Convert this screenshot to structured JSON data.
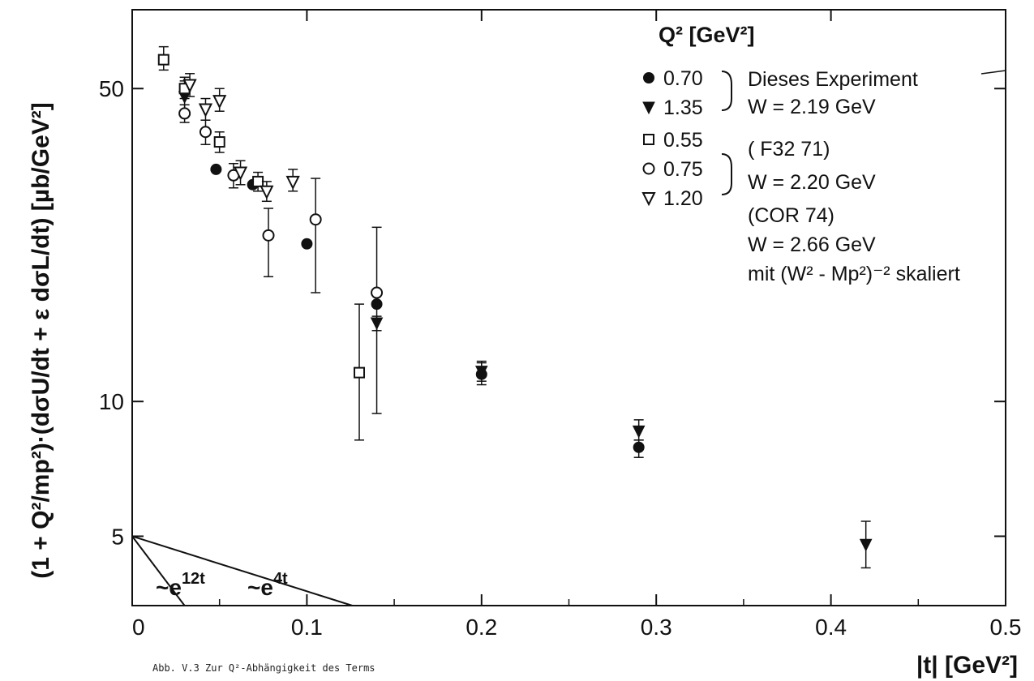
{
  "chart_data": {
    "type": "scatter",
    "xlabel": "|t| [GeV²]",
    "ylabel": "(1 + Q²/mp²)·(dσU/dt + ε dσL/dt)  [µb/GeV²]",
    "xlim": [
      0,
      0.5
    ],
    "ylim": [
      3.5,
      75
    ],
    "y_scale": "log",
    "x_ticks": [
      "0",
      "0.1",
      "0.2",
      "0.3",
      "0.4",
      "0.5"
    ],
    "y_ticks": [
      "5",
      "10",
      "50"
    ],
    "legend_title": "Q² [GeV²]",
    "legend_position": "top-right",
    "legend": [
      {
        "symbol": "filled-circle",
        "label": "0.70"
      },
      {
        "symbol": "filled-triangle-down",
        "label": "1.35"
      },
      {
        "symbol": "open-square",
        "label": "0.55"
      },
      {
        "symbol": "open-circle",
        "label": "0.75"
      },
      {
        "symbol": "open-triangle-down",
        "label": "1.20"
      }
    ],
    "legend_notes": [
      "Dieses Experiment",
      "W = 2.19 GeV",
      "( F32  71)",
      "W = 2.20 GeV",
      "(COR 74)",
      "W = 2.66 GeV",
      "mit (W² - Mp²)⁻² skaliert"
    ],
    "series": [
      {
        "name": "0.70",
        "symbol": "filled-circle",
        "points": [
          {
            "x": 0.048,
            "y": 33,
            "lo": 33,
            "hi": 33
          },
          {
            "x": 0.069,
            "y": 30.5,
            "lo": 30.5,
            "hi": 30.5
          },
          {
            "x": 0.1,
            "y": 22.5,
            "lo": 22.5,
            "hi": 22.5
          },
          {
            "x": 0.14,
            "y": 16.5,
            "lo": 16.5,
            "hi": 16.5
          },
          {
            "x": 0.2,
            "y": 11.5,
            "lo": 10.9,
            "hi": 12.2
          },
          {
            "x": 0.29,
            "y": 7.9,
            "lo": 7.5,
            "hi": 8.2
          }
        ]
      },
      {
        "name": "1.35",
        "symbol": "filled-triangle-down",
        "points": [
          {
            "x": 0.03,
            "y": 48,
            "lo": 44,
            "hi": 52
          },
          {
            "x": 0.14,
            "y": 15.0,
            "lo": 14.4,
            "hi": 15.5
          },
          {
            "x": 0.2,
            "y": 11.7,
            "lo": 11.1,
            "hi": 12.3
          },
          {
            "x": 0.29,
            "y": 8.6,
            "lo": 8.2,
            "hi": 9.1
          },
          {
            "x": 0.42,
            "y": 4.8,
            "lo": 4.25,
            "hi": 5.4
          }
        ]
      },
      {
        "name": "0.55",
        "symbol": "open-square",
        "points": [
          {
            "x": 0.018,
            "y": 58,
            "lo": 55,
            "hi": 62
          },
          {
            "x": 0.03,
            "y": 50,
            "lo": 47.5,
            "hi": 53
          },
          {
            "x": 0.05,
            "y": 38,
            "lo": 36,
            "hi": 40
          },
          {
            "x": 0.072,
            "y": 31,
            "lo": 29.5,
            "hi": 32.5
          },
          {
            "x": 0.13,
            "y": 11.6,
            "lo": 8.2,
            "hi": 16.5
          }
        ]
      },
      {
        "name": "0.75",
        "symbol": "open-circle",
        "points": [
          {
            "x": 0.03,
            "y": 44,
            "lo": 42,
            "hi": 46
          },
          {
            "x": 0.042,
            "y": 40,
            "lo": 37.5,
            "hi": 42.5
          },
          {
            "x": 0.058,
            "y": 32,
            "lo": 30,
            "hi": 34
          },
          {
            "x": 0.078,
            "y": 23.5,
            "lo": 19,
            "hi": 27
          },
          {
            "x": 0.105,
            "y": 25.5,
            "lo": 17.5,
            "hi": 31.5
          },
          {
            "x": 0.14,
            "y": 17.5,
            "lo": 9.4,
            "hi": 24.5
          }
        ]
      },
      {
        "name": "1.20",
        "symbol": "open-triangle-down",
        "points": [
          {
            "x": 0.033,
            "y": 51,
            "lo": 48,
            "hi": 54
          },
          {
            "x": 0.042,
            "y": 45,
            "lo": 42.5,
            "hi": 47.5
          },
          {
            "x": 0.05,
            "y": 47,
            "lo": 44.5,
            "hi": 50
          },
          {
            "x": 0.062,
            "y": 32.5,
            "lo": 30.5,
            "hi": 34.5
          },
          {
            "x": 0.077,
            "y": 29.5,
            "lo": 28,
            "hi": 31
          },
          {
            "x": 0.092,
            "y": 31,
            "lo": 29.5,
            "hi": 33
          }
        ]
      }
    ],
    "annotations": [
      {
        "text": "~e",
        "exponent": "12t",
        "line": [
          [
            0,
            5
          ],
          [
            0.03,
            3.5
          ]
        ]
      },
      {
        "text": "~e",
        "exponent": "4t",
        "line": [
          [
            0,
            5
          ],
          [
            0.126,
            3.5
          ]
        ]
      }
    ]
  },
  "caption": "Abb. V.3  Zur Q²-Abhängigkeit des Terms"
}
